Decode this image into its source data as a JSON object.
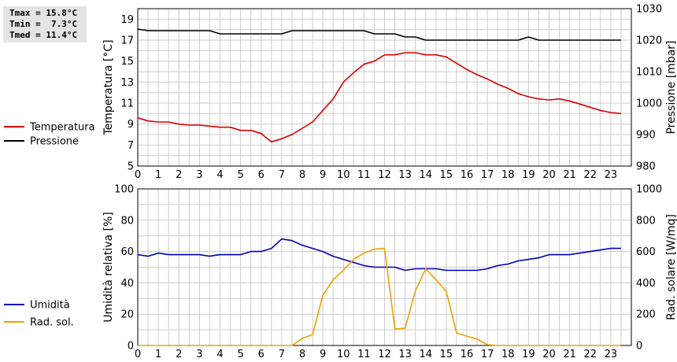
{
  "stats": {
    "tmax": "Tmax = 15.8°C",
    "tmin": "Tmin =  7.3°C",
    "tmed": "Tmed = 11.4°C"
  },
  "colors": {
    "temperatura": "#dd0000",
    "pressione": "#000000",
    "umidita": "#0000bb",
    "rad_sol": "#f0a000",
    "grid": "#cccccc"
  },
  "chart_data": [
    {
      "type": "line",
      "x": [
        0,
        0.5,
        1,
        1.5,
        2,
        2.5,
        3,
        3.5,
        4,
        4.5,
        5,
        5.5,
        6,
        6.5,
        7,
        7.5,
        8,
        8.5,
        9,
        9.5,
        10,
        10.5,
        11,
        11.5,
        12,
        12.5,
        13,
        13.5,
        14,
        14.5,
        15,
        15.5,
        16,
        16.5,
        17,
        17.5,
        18,
        18.5,
        19,
        19.5,
        20,
        20.5,
        21,
        21.5,
        22,
        22.5,
        23,
        23.5
      ],
      "series": [
        {
          "name": "Temperatura",
          "axis": "left",
          "values": [
            9.6,
            9.3,
            9.2,
            9.2,
            9.0,
            8.9,
            8.9,
            8.8,
            8.7,
            8.7,
            8.4,
            8.4,
            8.1,
            7.3,
            7.6,
            8.0,
            8.6,
            9.2,
            10.3,
            11.4,
            13.0,
            13.9,
            14.7,
            15.0,
            15.6,
            15.6,
            15.8,
            15.8,
            15.6,
            15.6,
            15.4,
            14.8,
            14.2,
            13.7,
            13.3,
            12.8,
            12.4,
            11.9,
            11.6,
            11.4,
            11.3,
            11.4,
            11.2,
            10.9,
            10.6,
            10.3,
            10.1,
            10.0
          ]
        },
        {
          "name": "Pressione",
          "axis": "right",
          "values": [
            1023.5,
            1023,
            1023,
            1023,
            1023,
            1023,
            1023,
            1023,
            1022,
            1022,
            1022,
            1022,
            1022,
            1022,
            1022,
            1023,
            1023,
            1023,
            1023,
            1023,
            1023,
            1023,
            1023,
            1022,
            1022,
            1022,
            1021,
            1021,
            1020,
            1020,
            1020,
            1020,
            1020,
            1020,
            1020,
            1020,
            1020,
            1020,
            1021,
            1020,
            1020,
            1020,
            1020,
            1020,
            1020,
            1020,
            1020,
            1020
          ]
        }
      ],
      "xlabel": "",
      "ylabel": "Temperatura [°C]",
      "ylabel_right": "Pressione [mbar]",
      "xlim": [
        0,
        24
      ],
      "ylim": [
        5,
        20
      ],
      "ylim_right": [
        980,
        1030
      ],
      "x_ticks": [
        0,
        1,
        2,
        3,
        4,
        5,
        6,
        7,
        8,
        9,
        10,
        11,
        12,
        13,
        14,
        15,
        16,
        17,
        18,
        19,
        20,
        21,
        22,
        23
      ],
      "y_ticks": [
        5,
        7,
        9,
        11,
        13,
        15,
        17,
        19
      ],
      "y_ticks_right": [
        980,
        990,
        1000,
        1010,
        1020,
        1030
      ],
      "grid": true,
      "legend": "left"
    },
    {
      "type": "line",
      "x": [
        0,
        0.5,
        1,
        1.5,
        2,
        2.5,
        3,
        3.5,
        4,
        4.5,
        5,
        5.5,
        6,
        6.5,
        7,
        7.5,
        8,
        8.5,
        9,
        9.5,
        10,
        10.5,
        11,
        11.5,
        12,
        12.5,
        13,
        13.5,
        14,
        14.5,
        15,
        15.5,
        16,
        16.5,
        17,
        17.5,
        18,
        18.5,
        19,
        19.5,
        20,
        20.5,
        21,
        21.5,
        22,
        22.5,
        23,
        23.5
      ],
      "series": [
        {
          "name": "Umidità",
          "axis": "left",
          "values": [
            58,
            57,
            59,
            58,
            58,
            58,
            58,
            57,
            58,
            58,
            58,
            60,
            60,
            62,
            68,
            67,
            64,
            62,
            60,
            57,
            55,
            53,
            51,
            50,
            50,
            50,
            48,
            49,
            49,
            49,
            48,
            48,
            48,
            48,
            49,
            51,
            52,
            54,
            55,
            56,
            58,
            58,
            58,
            59,
            60,
            61,
            62,
            62
          ]
        },
        {
          "name": "Rad. sol.",
          "axis": "right",
          "values": [
            0,
            0,
            0,
            0,
            0,
            0,
            0,
            0,
            0,
            0,
            0,
            0,
            0,
            0,
            0,
            0,
            45,
            70,
            320,
            420,
            480,
            550,
            590,
            615,
            620,
            105,
            110,
            350,
            490,
            420,
            345,
            80,
            60,
            40,
            5,
            0,
            0,
            0,
            0,
            0,
            0,
            0,
            0,
            0,
            0,
            0,
            0,
            0
          ]
        }
      ],
      "xlabel": "",
      "ylabel": "Umidità relativa [%]",
      "ylabel_right": "Rad. solare [W/mq]",
      "xlim": [
        0,
        24
      ],
      "ylim": [
        0,
        100
      ],
      "ylim_right": [
        0,
        1000
      ],
      "x_ticks": [
        0,
        1,
        2,
        3,
        4,
        5,
        6,
        7,
        8,
        9,
        10,
        11,
        12,
        13,
        14,
        15,
        16,
        17,
        18,
        19,
        20,
        21,
        22,
        23
      ],
      "y_ticks": [
        0,
        20,
        40,
        60,
        80,
        100
      ],
      "y_ticks_right": [
        0,
        200,
        400,
        600,
        800,
        1000
      ],
      "grid": true,
      "legend": "left"
    }
  ]
}
